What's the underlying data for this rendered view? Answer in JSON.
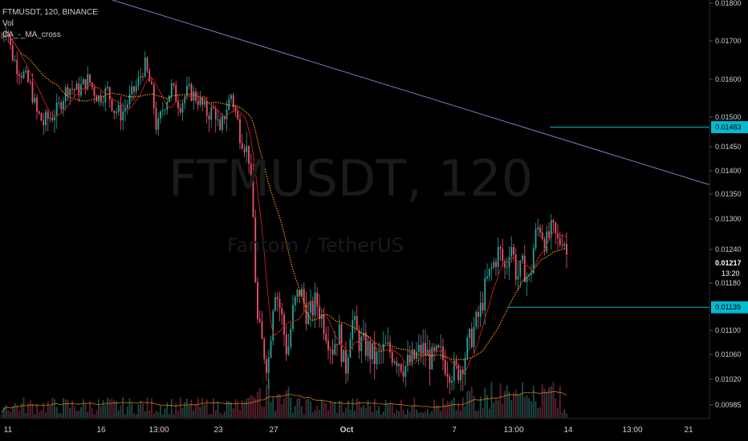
{
  "legend": {
    "title": "FTMUSDT, 120, BINANCE",
    "vol": "Vol",
    "indicator": "CA_-_MA_cross"
  },
  "watermark": {
    "symbol": "FTMUSDT, 120",
    "description": "Fantom / TetherUS"
  },
  "chart_data": {
    "type": "candlestick",
    "y_ticks": [
      "0.01800",
      "0.01700",
      "0.01600",
      "0.01500",
      "0.01450",
      "0.01400",
      "0.01350",
      "0.01300",
      "0.01240",
      "0.01180",
      "0.01100",
      "0.01060",
      "0.01020",
      "0.00985"
    ],
    "x_ticks": [
      "11",
      "16",
      "13:00",
      "23",
      "27",
      "Oct",
      "7",
      "13:00",
      "14",
      "13:00",
      "21"
    ],
    "price_line": {
      "value": "0.01217",
      "color": "#000000",
      "countdown": "13:20"
    },
    "horizontal_levels": [
      {
        "value": "0.01483",
        "color": "#00bcd4"
      },
      {
        "value": "0.01139",
        "color": "#00bcd4"
      }
    ],
    "trendline": {
      "color": "#7b7bc4",
      "from": [
        "09-09",
        0.0185
      ],
      "to": [
        "10-22",
        0.0137
      ]
    },
    "colors": {
      "up": "#26a69a",
      "down": "#ef5370",
      "ma_fast": "#b71c1c",
      "ma_slow": "#ff9800"
    },
    "close_path": [
      {
        "t": 0,
        "v": 0.0171
      },
      {
        "t": 6,
        "v": 0.01745
      },
      {
        "t": 12,
        "v": 0.0167
      },
      {
        "t": 20,
        "v": 0.0163
      },
      {
        "t": 28,
        "v": 0.0161
      },
      {
        "t": 36,
        "v": 0.0158
      },
      {
        "t": 44,
        "v": 0.0151
      },
      {
        "t": 52,
        "v": 0.0149
      },
      {
        "t": 60,
        "v": 0.015
      },
      {
        "t": 70,
        "v": 0.0152
      },
      {
        "t": 82,
        "v": 0.0158
      },
      {
        "t": 95,
        "v": 0.0157
      },
      {
        "t": 108,
        "v": 0.016
      },
      {
        "t": 120,
        "v": 0.0155
      },
      {
        "t": 132,
        "v": 0.0157
      },
      {
        "t": 140,
        "v": 0.0152
      },
      {
        "t": 150,
        "v": 0.0151
      },
      {
        "t": 160,
        "v": 0.0155
      },
      {
        "t": 170,
        "v": 0.0159
      },
      {
        "t": 178,
        "v": 0.0164
      },
      {
        "t": 186,
        "v": 0.0158
      },
      {
        "t": 194,
        "v": 0.0147
      },
      {
        "t": 202,
        "v": 0.0153
      },
      {
        "t": 212,
        "v": 0.0158
      },
      {
        "t": 222,
        "v": 0.0153
      },
      {
        "t": 232,
        "v": 0.0157
      },
      {
        "t": 244,
        "v": 0.0155
      },
      {
        "t": 256,
        "v": 0.0151
      },
      {
        "t": 266,
        "v": 0.0152
      },
      {
        "t": 272,
        "v": 0.0146
      },
      {
        "t": 278,
        "v": 0.0151
      },
      {
        "t": 286,
        "v": 0.0156
      },
      {
        "t": 294,
        "v": 0.0149
      },
      {
        "t": 302,
        "v": 0.0146
      },
      {
        "t": 308,
        "v": 0.0143
      },
      {
        "t": 313,
        "v": 0.0132
      },
      {
        "t": 318,
        "v": 0.0112
      },
      {
        "t": 324,
        "v": 0.0108
      },
      {
        "t": 332,
        "v": 0.0104
      },
      {
        "t": 340,
        "v": 0.0118
      },
      {
        "t": 348,
        "v": 0.0113
      },
      {
        "t": 356,
        "v": 0.0106
      },
      {
        "t": 364,
        "v": 0.0114
      },
      {
        "t": 372,
        "v": 0.0117
      },
      {
        "t": 382,
        "v": 0.0112
      },
      {
        "t": 392,
        "v": 0.0115
      },
      {
        "t": 402,
        "v": 0.0111
      },
      {
        "t": 412,
        "v": 0.0107
      },
      {
        "t": 420,
        "v": 0.011
      },
      {
        "t": 428,
        "v": 0.0103
      },
      {
        "t": 436,
        "v": 0.0112
      },
      {
        "t": 446,
        "v": 0.0108
      },
      {
        "t": 456,
        "v": 0.0107
      },
      {
        "t": 466,
        "v": 0.0105
      },
      {
        "t": 478,
        "v": 0.0107
      },
      {
        "t": 490,
        "v": 0.0106
      },
      {
        "t": 502,
        "v": 0.0104
      },
      {
        "t": 512,
        "v": 0.0105
      },
      {
        "t": 524,
        "v": 0.0107
      },
      {
        "t": 536,
        "v": 0.0105
      },
      {
        "t": 546,
        "v": 0.0106
      },
      {
        "t": 556,
        "v": 0.0104
      },
      {
        "t": 566,
        "v": 0.0103
      },
      {
        "t": 572,
        "v": 0.0104
      },
      {
        "t": 580,
        "v": 0.0107
      },
      {
        "t": 588,
        "v": 0.011
      },
      {
        "t": 596,
        "v": 0.0113
      },
      {
        "t": 604,
        "v": 0.0118
      },
      {
        "t": 612,
        "v": 0.0121
      },
      {
        "t": 620,
        "v": 0.0124
      },
      {
        "t": 628,
        "v": 0.012
      },
      {
        "t": 634,
        "v": 0.0126
      },
      {
        "t": 642,
        "v": 0.0119
      },
      {
        "t": 650,
        "v": 0.0121
      },
      {
        "t": 658,
        "v": 0.0118
      },
      {
        "t": 664,
        "v": 0.0126
      },
      {
        "t": 670,
        "v": 0.0129
      },
      {
        "t": 678,
        "v": 0.0125
      },
      {
        "t": 686,
        "v": 0.0128
      },
      {
        "t": 694,
        "v": 0.0125
      },
      {
        "t": 700,
        "v": 0.0127
      },
      {
        "t": 706,
        "v": 0.0121
      }
    ]
  }
}
